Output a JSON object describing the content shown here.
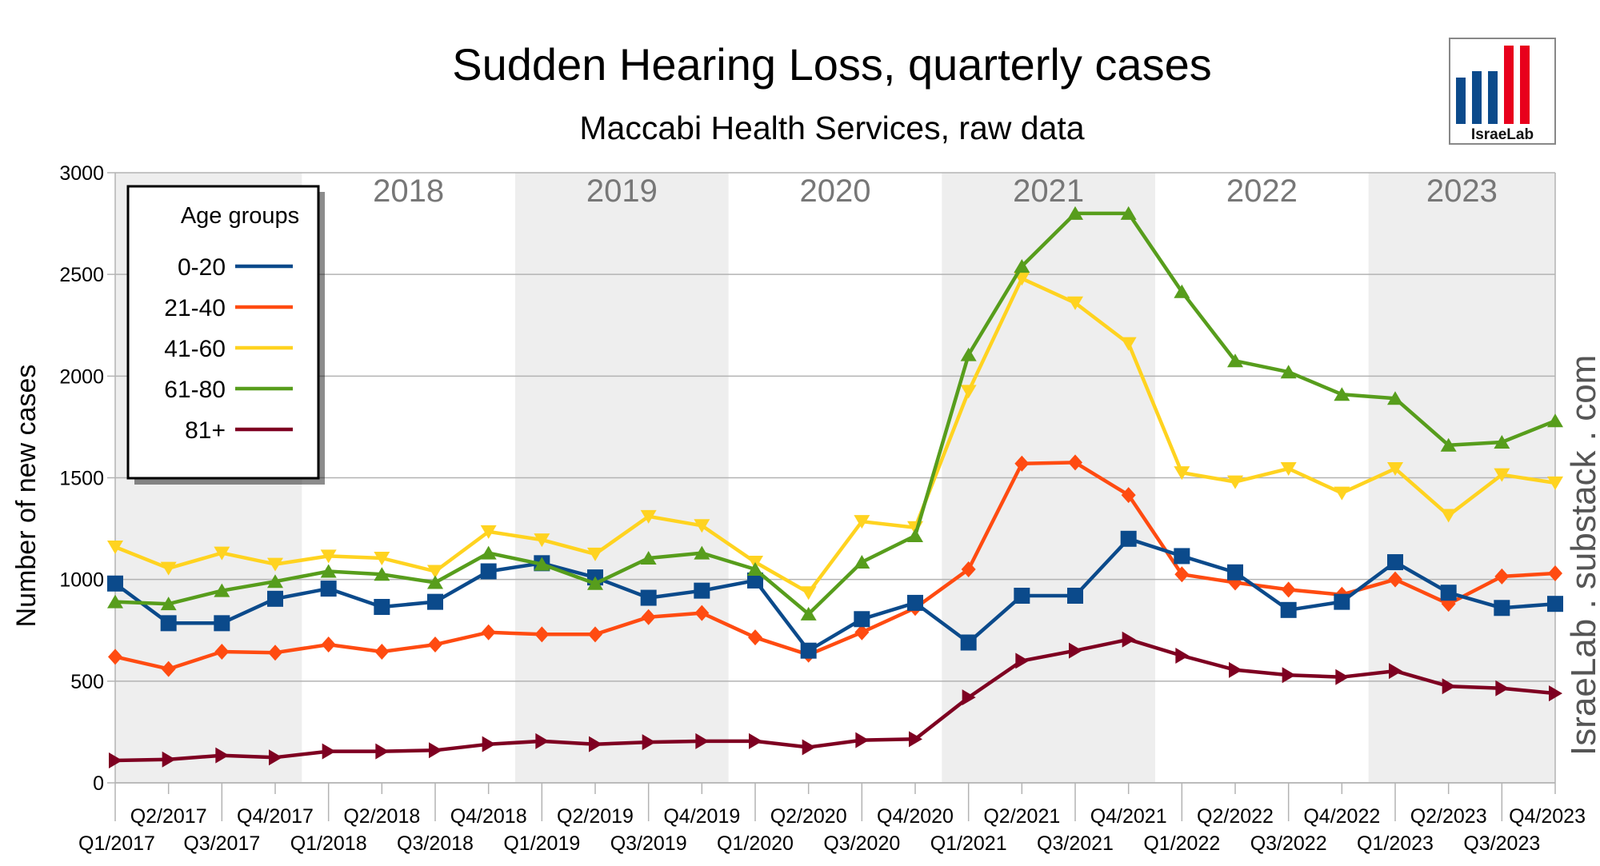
{
  "chart_data": {
    "type": "line",
    "title": "Sudden Hearing Loss, quarterly cases",
    "subtitle": "Maccabi Health Services, raw data",
    "ylabel": "Number of new cases",
    "ylim": [
      0,
      3000
    ],
    "yticks": [
      "0",
      "500",
      "1000",
      "1500",
      "2000",
      "2500",
      "3000"
    ],
    "grid": "horizontal",
    "categories": [
      "Q1/2017",
      "Q2/2017",
      "Q3/2017",
      "Q4/2017",
      "Q1/2018",
      "Q2/2018",
      "Q3/2018",
      "Q4/2018",
      "Q1/2019",
      "Q2/2019",
      "Q3/2019",
      "Q4/2019",
      "Q1/2020",
      "Q2/2020",
      "Q3/2020",
      "Q4/2020",
      "Q1/2021",
      "Q2/2021",
      "Q3/2021",
      "Q4/2021",
      "Q1/2022",
      "Q2/2022",
      "Q3/2022",
      "Q4/2022",
      "Q1/2023",
      "Q2/2023",
      "Q3/2023",
      "Q4/2023"
    ],
    "year_bands": [
      {
        "label": "",
        "shaded": true
      },
      {
        "label": "2018",
        "shaded": false
      },
      {
        "label": "2019",
        "shaded": true
      },
      {
        "label": "2020",
        "shaded": false
      },
      {
        "label": "2021",
        "shaded": true
      },
      {
        "label": "2022",
        "shaded": false
      },
      {
        "label": "2023",
        "shaded": true
      }
    ],
    "legend": {
      "title": "Age groups",
      "position": "top-left"
    },
    "series": [
      {
        "name": "0-20",
        "color": "#0b4a8b",
        "marker": "square",
        "values": [
          980,
          785,
          785,
          905,
          955,
          865,
          890,
          1040,
          1080,
          1010,
          910,
          945,
          995,
          650,
          805,
          885,
          690,
          920,
          920,
          1200,
          1115,
          1035,
          850,
          890,
          1085,
          935,
          860,
          880
        ]
      },
      {
        "name": "21-40",
        "color": "#ff4b11",
        "marker": "diamond",
        "values": [
          620,
          560,
          645,
          640,
          680,
          645,
          680,
          740,
          730,
          730,
          815,
          835,
          715,
          630,
          740,
          860,
          1050,
          1570,
          1575,
          1415,
          1025,
          985,
          950,
          925,
          1000,
          880,
          1015,
          1030
        ]
      },
      {
        "name": "41-60",
        "color": "#ffd320",
        "marker": "triangle-down",
        "values": [
          1160,
          1055,
          1130,
          1075,
          1115,
          1105,
          1040,
          1235,
          1195,
          1125,
          1310,
          1265,
          1085,
          935,
          1285,
          1255,
          1925,
          2480,
          2360,
          2160,
          1525,
          1480,
          1545,
          1425,
          1545,
          1315,
          1515,
          1475
        ]
      },
      {
        "name": "61-80",
        "color": "#579d1c",
        "marker": "triangle-up",
        "values": [
          890,
          880,
          945,
          990,
          1040,
          1025,
          985,
          1130,
          1075,
          980,
          1105,
          1130,
          1050,
          830,
          1085,
          1215,
          2105,
          2540,
          2800,
          2800,
          2415,
          2075,
          2020,
          1910,
          1890,
          1660,
          1675,
          1780
        ]
      },
      {
        "name": "81+",
        "color": "#7e0021",
        "marker": "triangle-right",
        "values": [
          110,
          115,
          135,
          125,
          155,
          155,
          160,
          190,
          205,
          190,
          200,
          205,
          205,
          175,
          210,
          215,
          420,
          600,
          650,
          705,
          625,
          555,
          530,
          520,
          550,
          475,
          465,
          440
        ]
      }
    ]
  },
  "branding": {
    "watermark": "IsraeLab . substack . com",
    "logo_text": "IsraeLab",
    "logo_colors": [
      "#0b4a8b",
      "#e8001c"
    ]
  }
}
